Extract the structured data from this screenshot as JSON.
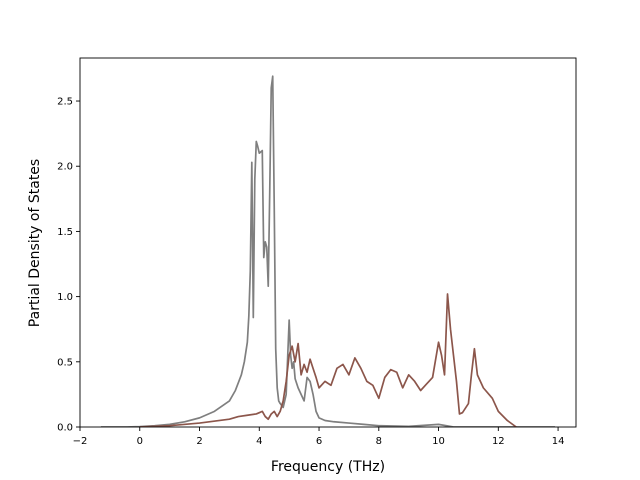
{
  "chart_data": {
    "type": "line",
    "title": "",
    "xlabel": "Frequency (THz)",
    "ylabel": "Partial Density of States",
    "xlim": [
      -2,
      14.6
    ],
    "ylim": [
      0,
      2.83
    ],
    "xticks": [
      -2,
      0,
      2,
      4,
      6,
      8,
      10,
      12,
      14
    ],
    "xtick_labels": [
      "−2",
      "0",
      "2",
      "4",
      "6",
      "8",
      "10",
      "12",
      "14"
    ],
    "yticks": [
      0.0,
      0.5,
      1.0,
      1.5,
      2.0,
      2.5
    ],
    "ytick_labels": [
      "0.0",
      "0.5",
      "1.0",
      "1.5",
      "2.0",
      "2.5"
    ],
    "grid": false,
    "legend": "none",
    "series": [
      {
        "color": "#7f7f7f",
        "x": [
          -1.3,
          -0.5,
          0.0,
          0.5,
          1.0,
          1.5,
          2.0,
          2.5,
          3.0,
          3.2,
          3.4,
          3.5,
          3.6,
          3.65,
          3.7,
          3.75,
          3.8,
          3.85,
          3.9,
          3.95,
          4.0,
          4.1,
          4.15,
          4.2,
          4.25,
          4.3,
          4.35,
          4.4,
          4.45,
          4.5,
          4.55,
          4.6,
          4.65,
          4.7,
          4.8,
          4.9,
          5.0,
          5.05,
          5.1,
          5.15,
          5.2,
          5.3,
          5.4,
          5.5,
          5.6,
          5.7,
          5.8,
          5.9,
          6.0,
          6.2,
          6.5,
          7.0,
          7.5,
          8.0,
          9.0,
          10.0,
          10.5,
          11.0,
          12.0,
          13.0,
          13.9
        ],
        "y": [
          0.0,
          0.0,
          0.003,
          0.01,
          0.02,
          0.04,
          0.07,
          0.12,
          0.2,
          0.28,
          0.4,
          0.5,
          0.65,
          0.85,
          1.2,
          2.03,
          0.84,
          1.9,
          2.19,
          2.15,
          2.1,
          2.12,
          1.3,
          1.42,
          1.38,
          1.08,
          1.8,
          2.6,
          2.69,
          1.7,
          0.6,
          0.3,
          0.2,
          0.18,
          0.15,
          0.25,
          0.82,
          0.55,
          0.45,
          0.5,
          0.37,
          0.3,
          0.25,
          0.2,
          0.38,
          0.35,
          0.25,
          0.12,
          0.07,
          0.05,
          0.04,
          0.03,
          0.02,
          0.01,
          0.005,
          0.02,
          0.0,
          0.0,
          0.0,
          0.0,
          0.0
        ]
      },
      {
        "color": "#8c564b",
        "x": [
          0.0,
          1.0,
          2.0,
          3.0,
          3.3,
          3.6,
          3.9,
          4.0,
          4.1,
          4.2,
          4.3,
          4.4,
          4.5,
          4.6,
          4.7,
          4.8,
          4.9,
          5.0,
          5.1,
          5.2,
          5.3,
          5.4,
          5.5,
          5.6,
          5.7,
          5.8,
          5.9,
          6.0,
          6.2,
          6.4,
          6.6,
          6.8,
          7.0,
          7.2,
          7.4,
          7.6,
          7.8,
          8.0,
          8.2,
          8.4,
          8.6,
          8.8,
          9.0,
          9.2,
          9.4,
          9.6,
          9.8,
          10.0,
          10.1,
          10.2,
          10.3,
          10.4,
          10.5,
          10.6,
          10.7,
          10.8,
          11.0,
          11.1,
          11.2,
          11.3,
          11.5,
          11.8,
          12.0,
          12.3,
          12.6
        ],
        "y": [
          0.0,
          0.01,
          0.03,
          0.06,
          0.08,
          0.09,
          0.1,
          0.11,
          0.12,
          0.08,
          0.06,
          0.1,
          0.12,
          0.08,
          0.12,
          0.2,
          0.35,
          0.55,
          0.62,
          0.5,
          0.64,
          0.4,
          0.48,
          0.42,
          0.52,
          0.45,
          0.38,
          0.3,
          0.35,
          0.32,
          0.45,
          0.48,
          0.4,
          0.53,
          0.45,
          0.35,
          0.32,
          0.22,
          0.38,
          0.44,
          0.42,
          0.3,
          0.4,
          0.35,
          0.28,
          0.33,
          0.38,
          0.65,
          0.55,
          0.4,
          1.02,
          0.75,
          0.55,
          0.35,
          0.1,
          0.11,
          0.18,
          0.4,
          0.6,
          0.4,
          0.3,
          0.22,
          0.12,
          0.05,
          0.0
        ]
      }
    ]
  }
}
